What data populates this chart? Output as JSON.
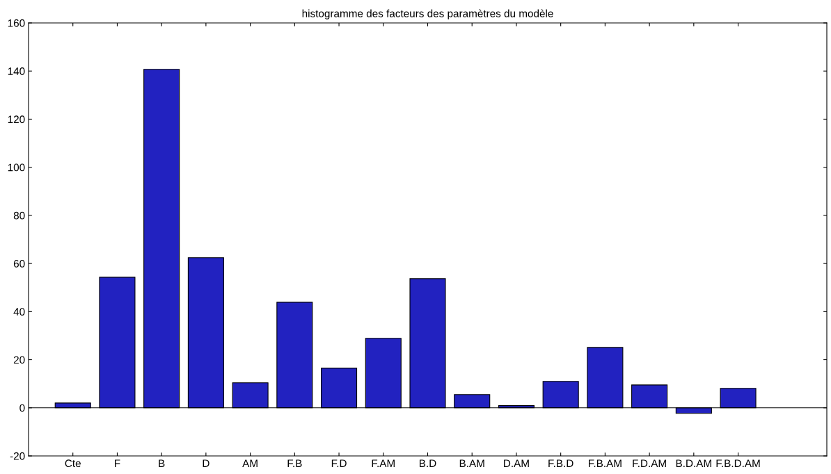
{
  "chart_data": {
    "type": "bar",
    "title": "histogramme des facteurs des paramètres du modèle",
    "categories": [
      "Cte",
      "F",
      "B",
      "D",
      "AM",
      "F.B",
      "F.D",
      "F.AM",
      "B.D",
      "B.AM",
      "D.AM",
      "F.B.D",
      "F.B.AM",
      "F.D.AM",
      "B.D.AM",
      "F.B.D.AM"
    ],
    "values": [
      2.0,
      54.3,
      140.7,
      62.4,
      10.4,
      43.9,
      16.5,
      28.9,
      53.7,
      5.5,
      0.9,
      11.0,
      25.1,
      9.5,
      -2.3,
      8.1
    ],
    "color": "#2222c0",
    "ylim": [
      -20,
      160
    ],
    "yticks": [
      -20,
      0,
      20,
      40,
      60,
      80,
      100,
      120,
      140,
      160
    ],
    "ref_lines": [
      {
        "axis": "y",
        "value": 0,
        "color": "#000000"
      }
    ],
    "grid": false
  }
}
